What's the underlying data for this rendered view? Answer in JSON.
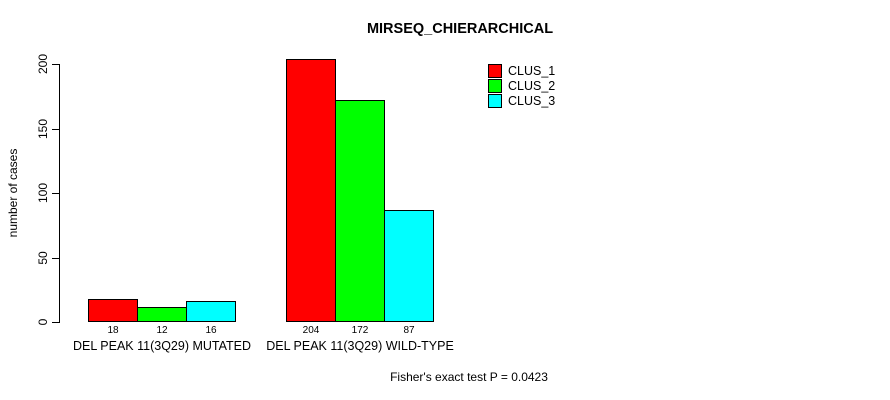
{
  "chart_data": {
    "type": "bar",
    "title": "MIRSEQ_CHIERARCHICAL",
    "xlabel": "",
    "ylabel": "number of cases",
    "categories": [
      "DEL PEAK 11(3Q29) MUTATED",
      "DEL PEAK 11(3Q29) WILD-TYPE"
    ],
    "series": [
      {
        "name": "CLUS_1",
        "color": "#ff0000",
        "values": [
          18,
          204
        ]
      },
      {
        "name": "CLUS_2",
        "color": "#00ff00",
        "values": [
          12,
          172
        ]
      },
      {
        "name": "CLUS_3",
        "color": "#00ffff",
        "values": [
          16,
          87
        ]
      }
    ],
    "yticks": [
      0,
      50,
      100,
      150,
      200
    ],
    "ylim": [
      0,
      204
    ],
    "grid": false,
    "show_bar_values": true,
    "legend_position": "top-right",
    "annotation": "Fisher's exact test P = 0.0423"
  }
}
